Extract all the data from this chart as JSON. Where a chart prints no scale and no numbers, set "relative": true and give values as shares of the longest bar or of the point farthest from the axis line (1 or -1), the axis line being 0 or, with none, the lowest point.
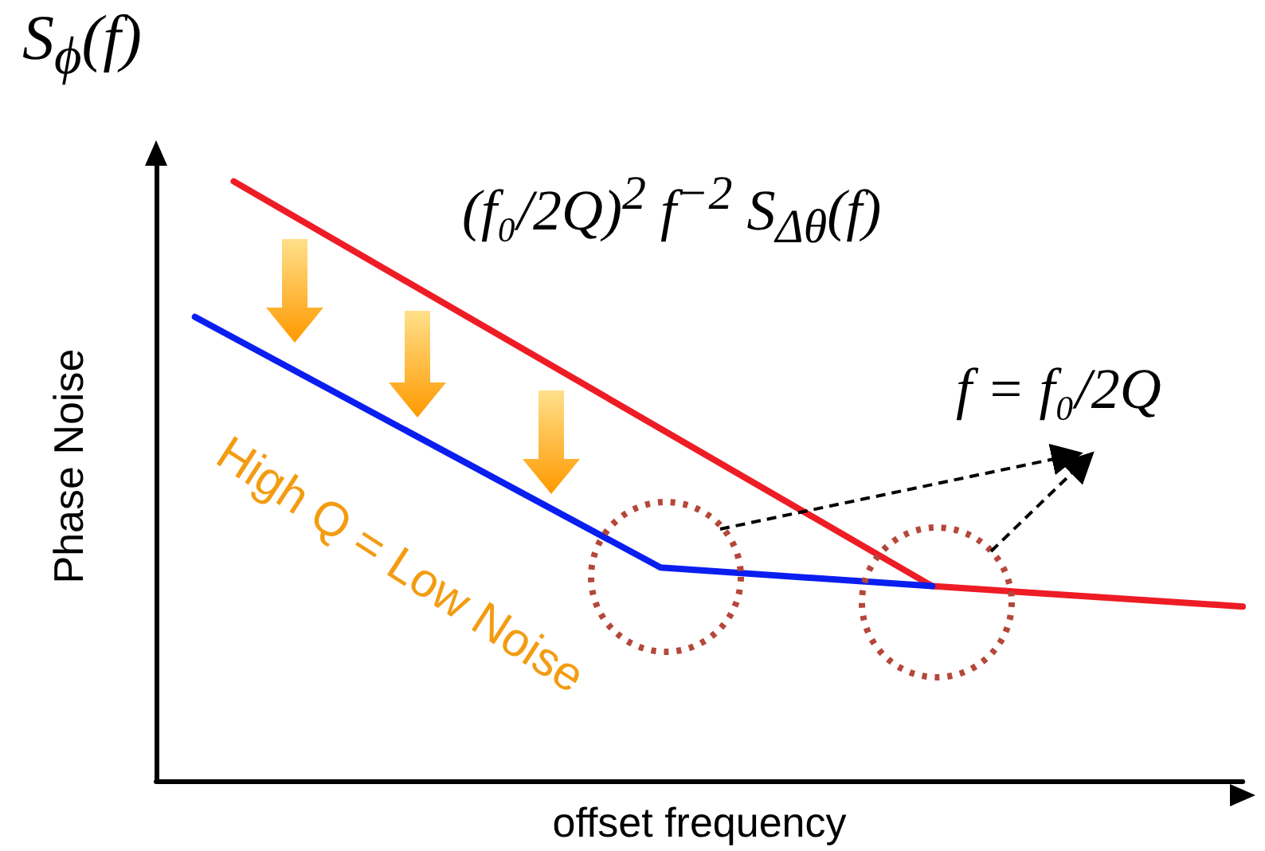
{
  "chart_data": {
    "type": "line",
    "relative": true,
    "xlabel": "offset frequency",
    "ylabel": "Phase Noise",
    "categories": [
      null,
      null,
      null,
      null,
      null,
      null,
      null,
      null,
      null,
      null,
      null,
      null,
      null,
      null,
      null,
      null,
      null,
      null,
      null,
      null,
      null,
      null,
      null,
      null,
      null,
      null,
      null,
      null,
      null
    ],
    "series": [
      {
        "color": "#ee1c25",
        "values": [
          null,
          null,
          1,
          null,
          null,
          null,
          null,
          null,
          null,
          null,
          null,
          null,
          null,
          null,
          null,
          null,
          null,
          null,
          null,
          null,
          0.325,
          null,
          null,
          null,
          null,
          null,
          null,
          null,
          0.291
        ]
      },
      {
        "color": "#0a1ef0",
        "values": [
          null,
          0.774,
          null,
          null,
          null,
          null,
          null,
          null,
          null,
          null,
          null,
          null,
          null,
          0.356,
          null,
          null,
          null,
          null,
          null,
          null,
          0.325,
          null,
          null,
          null,
          null,
          null,
          null,
          null,
          null
        ]
      }
    ],
    "annotations": [
      "S$_{ϕ}$(f)",
      "(f₀/2Q)$^{2}$ f$^{−2}$ S$_{Δθ}$(f)",
      "f = f₀/2Q",
      "High Q = Low Noise"
    ]
  }
}
